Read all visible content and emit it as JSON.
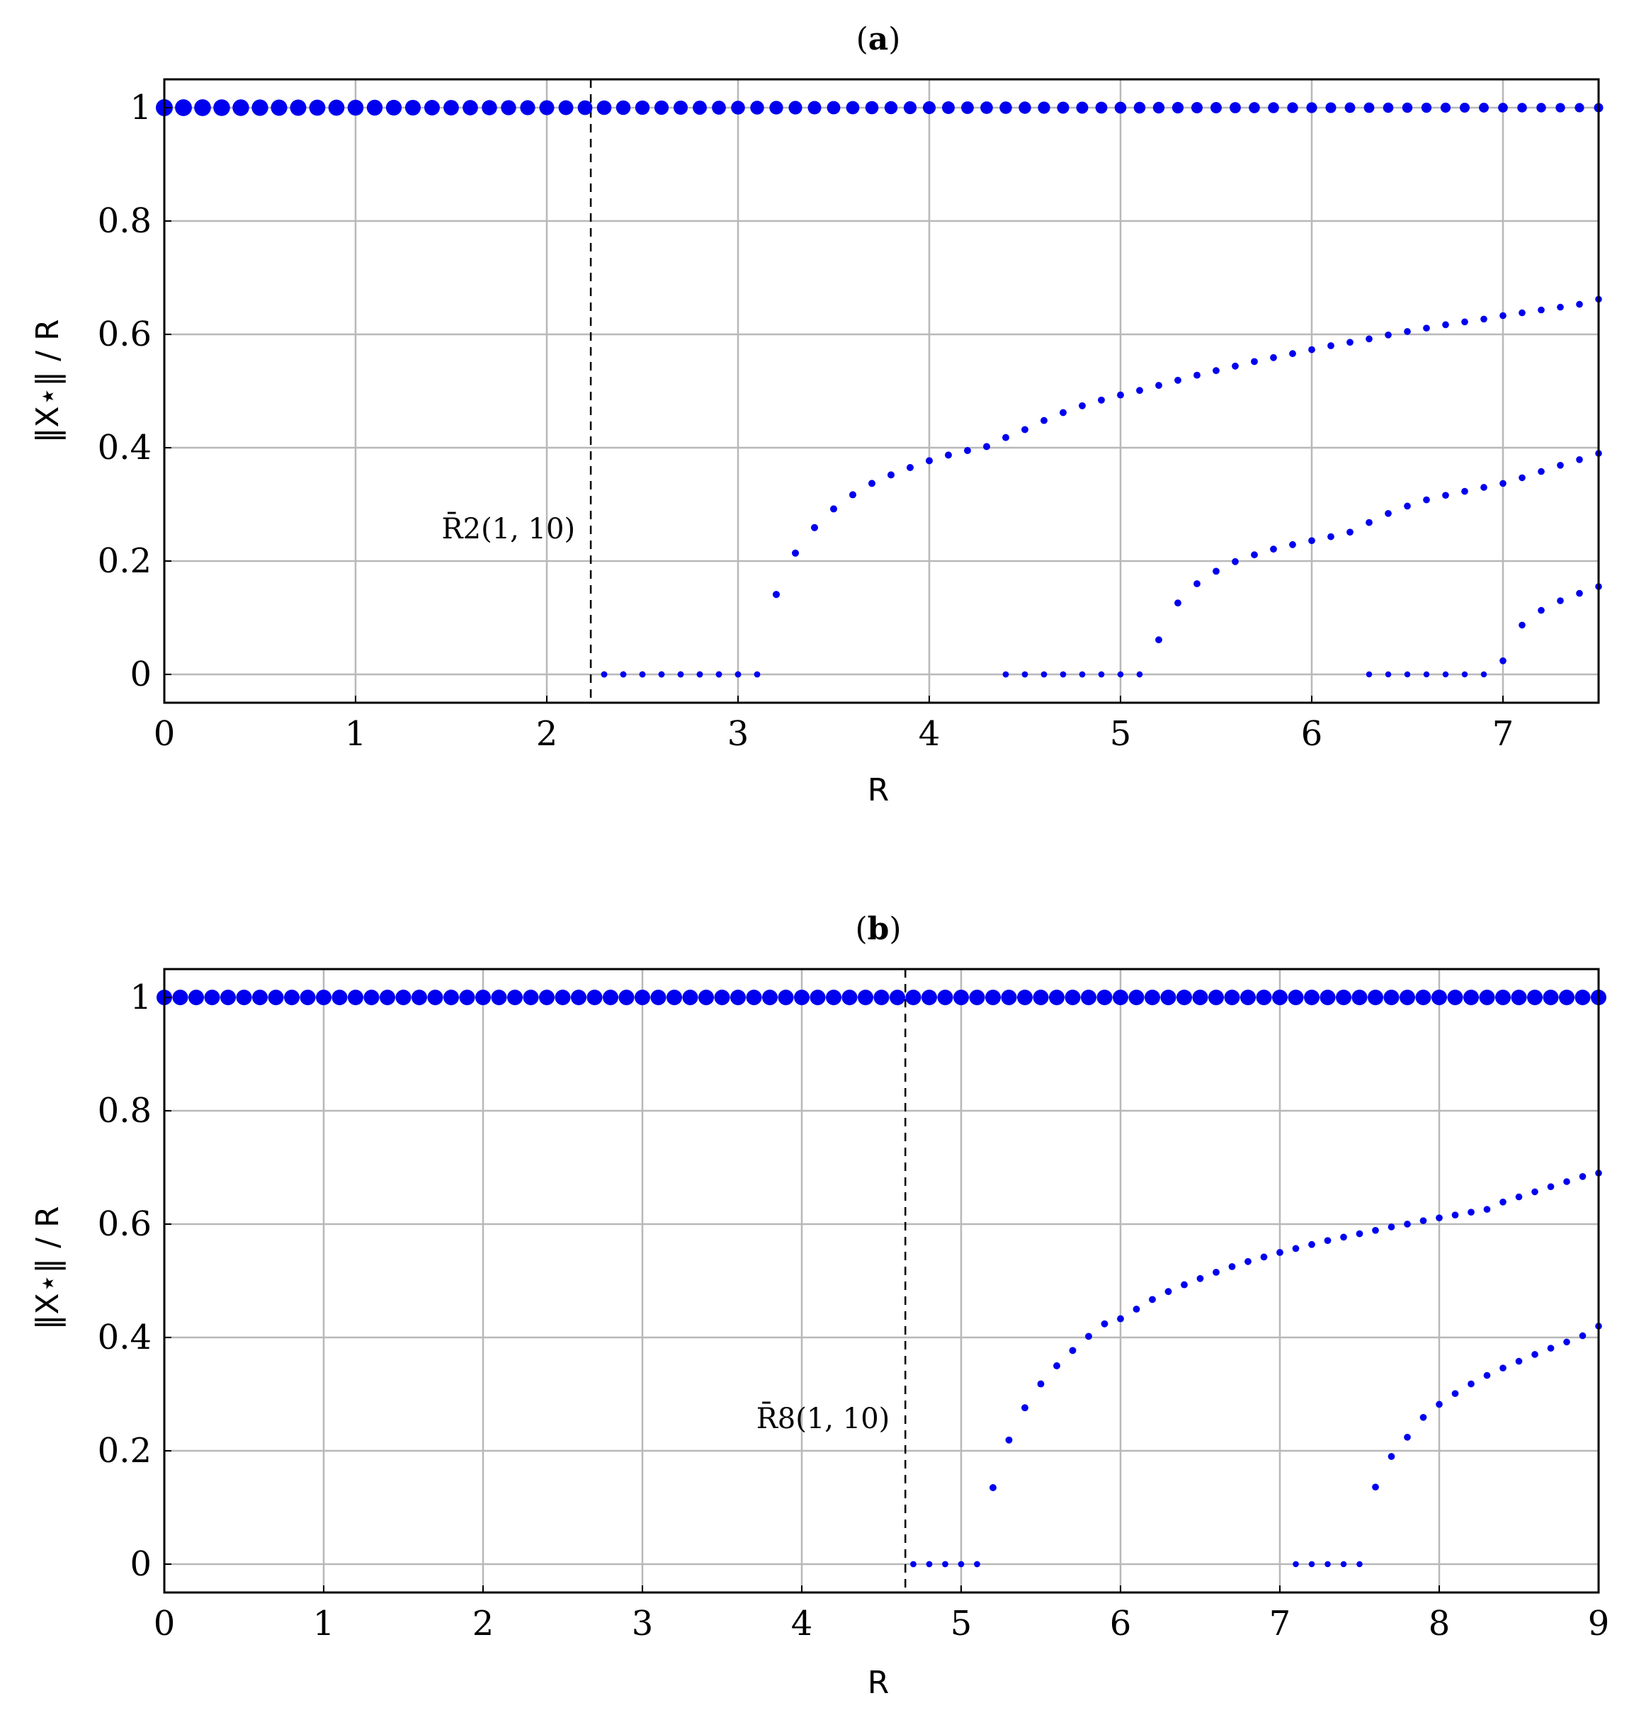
{
  "colors": {
    "points": "#0000ee",
    "grid": "#b8b8b8",
    "axes": "#000000"
  },
  "chart_data": [
    {
      "type": "scatter",
      "panel_label": "(a)",
      "panel_letter": "a",
      "xlabel": "R",
      "ylabel": "‖X⋆‖ / R",
      "xlim": [
        0,
        7.5
      ],
      "ylim": [
        -0.05,
        1.05
      ],
      "xticks": [
        0,
        1,
        2,
        3,
        4,
        5,
        6,
        7
      ],
      "yticks": [
        0,
        0.2,
        0.4,
        0.6,
        0.8,
        1
      ],
      "ytick_labels": [
        "0",
        "0.2",
        "0.4",
        "0.6",
        "0.8",
        "1"
      ],
      "grid": true,
      "vline": {
        "x": 2.23,
        "label": "R̄2(1, 10)"
      },
      "series": [
        {
          "x_start": 0.0,
          "x_end": 7.5,
          "step": 0.1,
          "values": [
            1,
            1,
            1,
            1,
            1,
            1,
            1,
            1,
            1,
            1,
            1,
            1,
            1,
            1,
            1,
            1,
            1,
            1,
            1,
            1,
            1,
            1,
            1,
            1,
            1,
            1,
            1,
            1,
            1,
            1,
            1,
            1,
            1,
            1,
            1,
            1,
            1,
            1,
            1,
            1,
            1,
            1,
            1,
            1,
            1,
            1,
            1,
            1,
            1,
            1,
            1,
            1,
            1,
            1,
            1,
            1,
            1,
            1,
            1,
            1,
            1,
            1,
            1,
            1,
            1,
            1,
            1,
            1,
            1,
            1,
            1,
            1,
            1,
            1,
            1,
            1
          ]
        },
        {
          "x_start": 2.3,
          "x_end": 3.1,
          "step": 0.1,
          "values": [
            0,
            0,
            0,
            0,
            0,
            0,
            0,
            0,
            0
          ]
        },
        {
          "x_start": 3.2,
          "x_end": 7.5,
          "step": 0.1,
          "values": [
            0.141,
            0.214,
            0.259,
            0.292,
            0.317,
            0.337,
            0.352,
            0.365,
            0.377,
            0.387,
            0.395,
            0.402,
            0.418,
            0.432,
            0.448,
            0.462,
            0.474,
            0.484,
            0.493,
            0.501,
            0.51,
            0.519,
            0.528,
            0.536,
            0.544,
            0.552,
            0.559,
            0.566,
            0.573,
            0.58,
            0.586,
            0.592,
            0.599,
            0.605,
            0.611,
            0.617,
            0.622,
            0.627,
            0.633,
            0.638,
            0.643,
            0.648,
            0.653,
            0.662
          ]
        },
        {
          "x_start": 4.4,
          "x_end": 5.1,
          "step": 0.1,
          "values": [
            0,
            0,
            0,
            0,
            0,
            0,
            0,
            0
          ]
        },
        {
          "x_start": 5.2,
          "x_end": 7.5,
          "step": 0.1,
          "values": [
            0.061,
            0.126,
            0.16,
            0.182,
            0.199,
            0.211,
            0.221,
            0.229,
            0.236,
            0.243,
            0.251,
            0.268,
            0.284,
            0.297,
            0.308,
            0.316,
            0.323,
            0.33,
            0.337,
            0.347,
            0.358,
            0.369,
            0.379,
            0.39
          ]
        },
        {
          "x_start": 6.3,
          "x_end": 6.9,
          "step": 0.1,
          "values": [
            0,
            0,
            0,
            0,
            0,
            0,
            0
          ]
        },
        {
          "x_start": 7.0,
          "x_end": 7.5,
          "step": 0.1,
          "values": [
            0.024,
            0.087,
            0.113,
            0.13,
            0.143,
            0.155
          ]
        }
      ]
    },
    {
      "type": "scatter",
      "panel_label": "(b)",
      "panel_letter": "b",
      "xlabel": "R",
      "ylabel": "‖X⋆‖ / R",
      "xlim": [
        0,
        9
      ],
      "ylim": [
        -0.05,
        1.05
      ],
      "xticks": [
        0,
        1,
        2,
        3,
        4,
        5,
        6,
        7,
        8,
        9
      ],
      "yticks": [
        0,
        0.2,
        0.4,
        0.6,
        0.8,
        1
      ],
      "ytick_labels": [
        "0",
        "0.2",
        "0.4",
        "0.6",
        "0.8",
        "1"
      ],
      "grid": true,
      "vline": {
        "x": 4.65,
        "label": "R̄8(1, 10)"
      },
      "series": [
        {
          "x_start": 0.0,
          "x_end": 9.0,
          "step": 0.1,
          "values": [
            1,
            1,
            1,
            1,
            1,
            1,
            1,
            1,
            1,
            1,
            1,
            1,
            1,
            1,
            1,
            1,
            1,
            1,
            1,
            1,
            1,
            1,
            1,
            1,
            1,
            1,
            1,
            1,
            1,
            1,
            1,
            1,
            1,
            1,
            1,
            1,
            1,
            1,
            1,
            1,
            1,
            1,
            1,
            1,
            1,
            1,
            1,
            1,
            1,
            1,
            1,
            1,
            1,
            1,
            1,
            1,
            1,
            1,
            1,
            1,
            1,
            1,
            1,
            1,
            1,
            1,
            1,
            1,
            1,
            1,
            1,
            1,
            1,
            1,
            1,
            1,
            1,
            1,
            1,
            1,
            1,
            1,
            1,
            1,
            1,
            1,
            1,
            1,
            1,
            1,
            1
          ]
        },
        {
          "x_start": 4.7,
          "x_end": 5.1,
          "step": 0.1,
          "values": [
            0,
            0,
            0,
            0,
            0
          ]
        },
        {
          "x_start": 5.2,
          "x_end": 9.0,
          "step": 0.1,
          "values": [
            0.135,
            0.219,
            0.276,
            0.318,
            0.35,
            0.377,
            0.402,
            0.424,
            0.433,
            0.45,
            0.467,
            0.481,
            0.493,
            0.504,
            0.515,
            0.525,
            0.534,
            0.542,
            0.55,
            0.557,
            0.564,
            0.571,
            0.577,
            0.583,
            0.589,
            0.595,
            0.6,
            0.606,
            0.611,
            0.616,
            0.621,
            0.626,
            0.639,
            0.648,
            0.657,
            0.666,
            0.675,
            0.684,
            0.69
          ]
        },
        {
          "x_start": 7.1,
          "x_end": 7.5,
          "step": 0.1,
          "values": [
            0,
            0,
            0,
            0,
            0
          ]
        },
        {
          "x_start": 7.6,
          "x_end": 9.0,
          "step": 0.1,
          "values": [
            0.136,
            0.19,
            0.224,
            0.259,
            0.282,
            0.301,
            0.318,
            0.333,
            0.346,
            0.358,
            0.37,
            0.381,
            0.392,
            0.403,
            0.42
          ]
        }
      ]
    }
  ]
}
